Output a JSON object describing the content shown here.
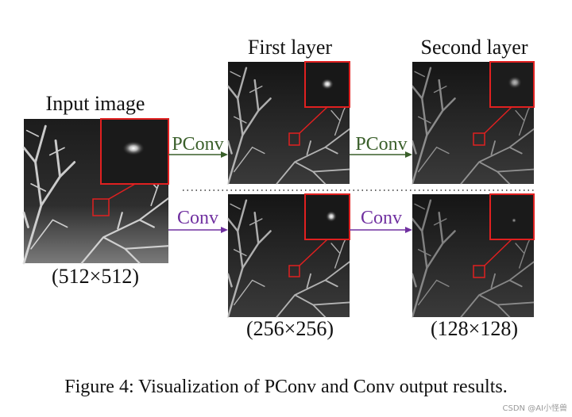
{
  "figure": {
    "columns": {
      "input": {
        "title": "Input image",
        "size": "(512×512)"
      },
      "first": {
        "title": "First layer",
        "size": "(256×256)"
      },
      "second": {
        "title": "Second layer",
        "size": "(128×128)"
      }
    },
    "arrows": {
      "top": [
        "PConv",
        "PConv"
      ],
      "bottom": [
        "Conv",
        "Conv"
      ]
    },
    "caption": "Figure 4: Visualization of PConv and Conv output results."
  },
  "watermark": "CSDN @AI小怪兽"
}
